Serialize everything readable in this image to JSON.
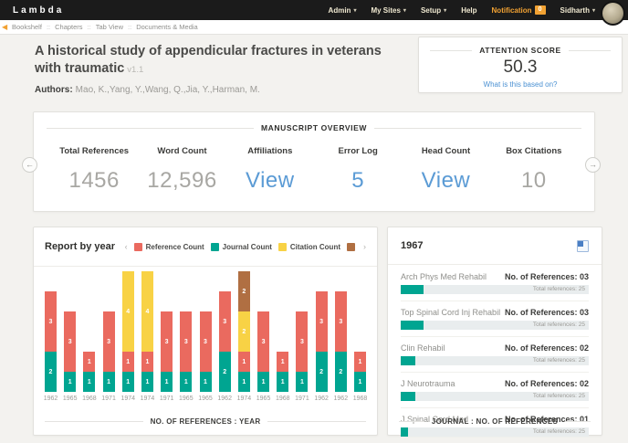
{
  "navbar": {
    "brand": "Lambda",
    "items": [
      {
        "label": "Admin",
        "dropdown": true,
        "highlight": false
      },
      {
        "label": "My Sites",
        "dropdown": true,
        "highlight": false
      },
      {
        "label": "Setup",
        "dropdown": true,
        "highlight": false
      },
      {
        "label": "Help",
        "dropdown": false,
        "highlight": false
      },
      {
        "label": "Notification",
        "dropdown": false,
        "highlight": true,
        "badge": "0"
      },
      {
        "label": "Sidharth",
        "dropdown": true,
        "highlight": false
      }
    ]
  },
  "breadcrumb": {
    "separator": "::",
    "items": [
      "Bookshelf",
      "Chapters",
      "Tab View",
      "Documents & Media"
    ]
  },
  "header": {
    "title": "A historical study of appendicular fractures in veterans with traumatic",
    "version": "v1.1",
    "authors_label": "Authors:",
    "authors": "Mao, K.,Yang, Y.,Wang, Q.,Jia, Y.,Harman, M."
  },
  "attention": {
    "title": "ATTENTION SCORE",
    "score": "50.3",
    "link": "What is this based on?"
  },
  "overview": {
    "title": "MANUSCRIPT OVERVIEW",
    "stats": [
      {
        "label": "Total References",
        "value": "1456",
        "type": "number"
      },
      {
        "label": "Word Count",
        "value": "12,596",
        "type": "number"
      },
      {
        "label": "Affiliations",
        "value": "View",
        "type": "link"
      },
      {
        "label": "Error Log",
        "value": "5",
        "type": "link"
      },
      {
        "label": "Head Count",
        "value": "View",
        "type": "link"
      },
      {
        "label": "Box Citations",
        "value": "10",
        "type": "number"
      }
    ]
  },
  "report": {
    "title": "Report by year",
    "caption": "NO. OF REFERENCES : YEAR",
    "legend": [
      {
        "label": "Reference Count",
        "color": "#EA6A5F"
      },
      {
        "label": "Journal Count",
        "color": "#00A591"
      },
      {
        "label": "Citation Count",
        "color": "#F8D245"
      },
      {
        "label": "",
        "color": "#B06F42",
        "truncated": true
      }
    ]
  },
  "chart_data": [
    {
      "type": "bar",
      "stacked": true,
      "title": "Report by year",
      "xlabel": "NO. OF REFERENCES : YEAR",
      "ylabel": "",
      "ylim": [
        0,
        6
      ],
      "grid": false,
      "legend_position": "top-right",
      "categories": [
        "1962",
        "1965",
        "1968",
        "1971",
        "1974",
        "1974",
        "1971",
        "1965",
        "1965",
        "1962",
        "1974",
        "1965",
        "1968",
        "1971",
        "1962",
        "1962",
        "1968"
      ],
      "series": [
        {
          "name": "Journal Count",
          "color": "#00A591",
          "values": [
            2,
            1,
            1,
            1,
            1,
            1,
            1,
            1,
            1,
            2,
            1,
            1,
            1,
            1,
            2,
            2,
            1
          ]
        },
        {
          "name": "Reference Count",
          "color": "#EA6A5F",
          "values": [
            3,
            3,
            1,
            3,
            1,
            1,
            3,
            3,
            3,
            3,
            1,
            3,
            1,
            3,
            3,
            3,
            1
          ]
        },
        {
          "name": "Citation Count",
          "color": "#F8D245",
          "values": [
            0,
            0,
            0,
            0,
            4,
            4,
            0,
            0,
            0,
            0,
            2,
            0,
            0,
            0,
            0,
            0,
            0
          ]
        },
        {
          "name": "",
          "legend_truncated": true,
          "color": "#B06F42",
          "values": [
            0,
            0,
            0,
            0,
            0,
            0,
            0,
            0,
            0,
            0,
            2,
            0,
            0,
            0,
            0,
            0,
            0
          ]
        }
      ],
      "stack_order_bottom_to_top": [
        "Journal Count",
        "Reference Count",
        "Citation Count",
        ""
      ]
    },
    {
      "type": "bar",
      "orientation": "horizontal",
      "title": "1967",
      "xlabel": "JOURNAL : NO. OF REFERENCES",
      "categories": [
        "Arch Phys Med Rehabil",
        "Top Spinal Cord Inj Rehabil",
        "Clin Rehabil",
        "J Neurotrauma",
        "J Spinal Cord Med"
      ],
      "values": [
        3,
        3,
        2,
        2,
        1
      ],
      "max_per_bar": 25
    }
  ],
  "year_panel": {
    "title": "1967",
    "caption": "JOURNAL : NO. OF REFERENCES",
    "ref_label": "No. of References:",
    "total_label": "Total references:",
    "total": 25,
    "journals": [
      {
        "name": "Arch Phys Med Rehabil",
        "references": "03",
        "count": 3
      },
      {
        "name": "Top Spinal Cord Inj Rehabil",
        "references": "03",
        "count": 3
      },
      {
        "name": "Clin Rehabil",
        "references": "02",
        "count": 2
      },
      {
        "name": "J Neurotrauma",
        "references": "02",
        "count": 2
      },
      {
        "name": "J Spinal Cord Med",
        "references": "01",
        "count": 1
      }
    ]
  },
  "colors": {
    "accent_orange": "#F2A233",
    "navbar_bg": "#1B1B1B",
    "bar_red": "#EA6A5F",
    "bar_teal": "#00A591",
    "bar_yellow": "#F8D245",
    "bar_brown": "#B06F42",
    "link_blue": "#4A90D2",
    "value_blue": "#5B9BD5",
    "page_bg": "#F3F2EF"
  }
}
